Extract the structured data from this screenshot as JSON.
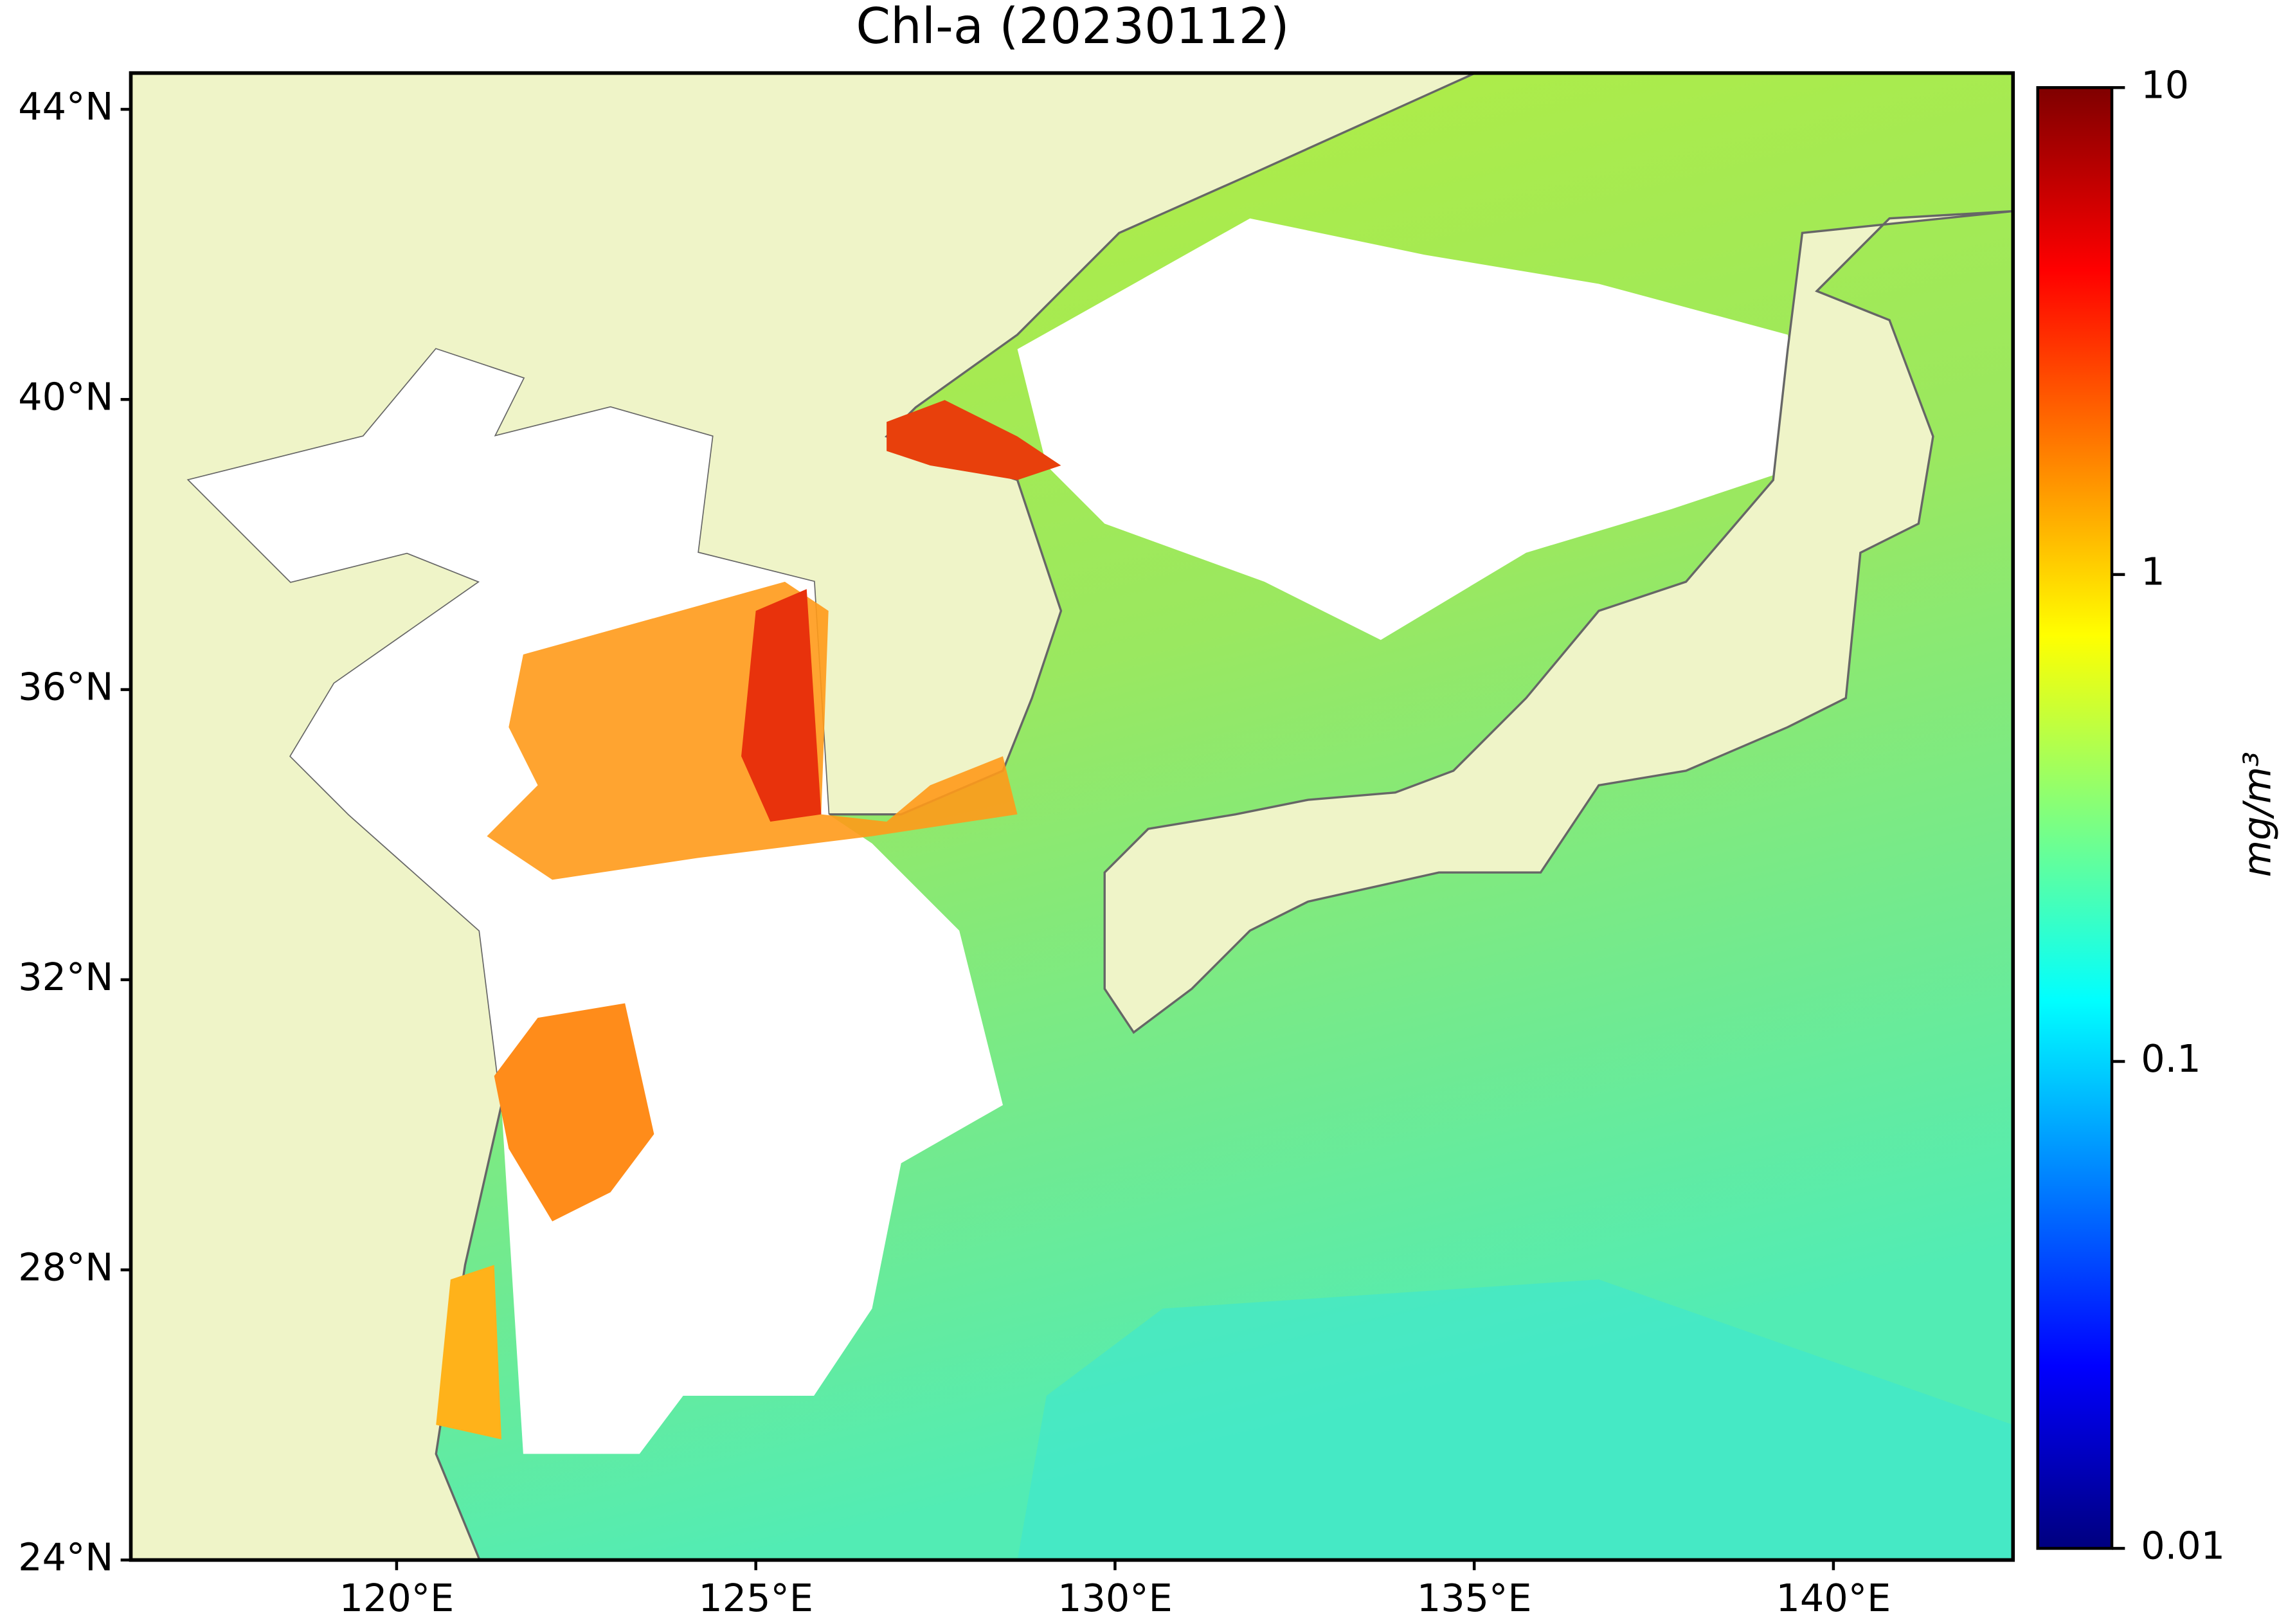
{
  "chart_data": {
    "type": "map",
    "title": "Chl-a (20230112)",
    "xlim": [
      116.3,
      142.5
    ],
    "ylim": [
      24,
      44.5
    ],
    "xticks": [
      {
        "value": 120,
        "label": "120°E"
      },
      {
        "value": 125,
        "label": "125°E"
      },
      {
        "value": 130,
        "label": "130°E"
      },
      {
        "value": 135,
        "label": "135°E"
      },
      {
        "value": 140,
        "label": "140°E"
      }
    ],
    "yticks": [
      {
        "value": 24,
        "label": "24°N"
      },
      {
        "value": 28,
        "label": "28°N"
      },
      {
        "value": 32,
        "label": "32°N"
      },
      {
        "value": 36,
        "label": "36°N"
      },
      {
        "value": 40,
        "label": "40°N"
      },
      {
        "value": 44,
        "label": "44°N"
      }
    ],
    "colorbar": {
      "label": "mg/m³",
      "log": true,
      "clim": [
        0.01,
        10
      ],
      "ticks": [
        0.01,
        0.1,
        1,
        10
      ],
      "colors": [
        "#00007f",
        "#0000ff",
        "#007fff",
        "#00ffff",
        "#7fff7f",
        "#ffff00",
        "#ff7f00",
        "#ff0000",
        "#7f0000"
      ]
    }
  }
}
